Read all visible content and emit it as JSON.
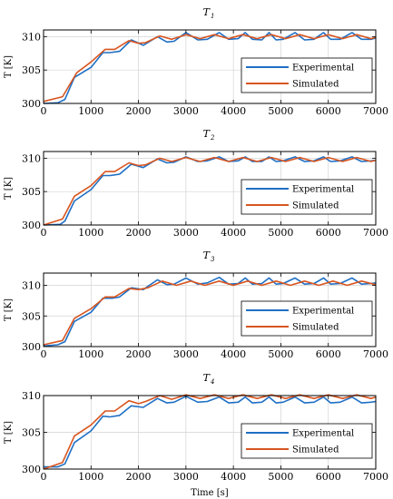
{
  "figure": {
    "xlabel": "Time [s]"
  },
  "chart_data": [
    {
      "type": "line",
      "title": "T",
      "title_sub": "1",
      "ylabel": "T [K]",
      "xlim": [
        0,
        7000
      ],
      "ylim": [
        300,
        311
      ],
      "x_ticks": [
        0,
        1000,
        2000,
        3000,
        4000,
        5000,
        6000,
        7000
      ],
      "y_ticks": [
        300,
        305,
        310
      ],
      "grid": true,
      "legend_position": "center-right",
      "series": [
        {
          "name": "Experimental",
          "color": "#1f6fc4",
          "x": [
            0,
            300,
            450,
            650,
            1000,
            1250,
            1400,
            1600,
            1850,
            2100,
            2400,
            2600,
            2750,
            3000,
            3250,
            3450,
            3700,
            3900,
            4100,
            4250,
            4400,
            4600,
            4750,
            4900,
            5050,
            5300,
            5500,
            5700,
            5900,
            6050,
            6250,
            6500,
            6700,
            6900,
            7000
          ],
          "y": [
            300.0,
            300.1,
            300.6,
            303.9,
            305.4,
            307.6,
            307.6,
            307.8,
            309.5,
            308.7,
            310.0,
            309.2,
            309.3,
            310.6,
            309.5,
            309.6,
            310.6,
            309.6,
            309.7,
            310.6,
            309.6,
            309.5,
            310.6,
            309.5,
            309.6,
            310.6,
            309.5,
            309.6,
            310.6,
            309.6,
            309.6,
            310.6,
            309.6,
            309.6,
            309.8
          ]
        },
        {
          "name": "Simulated",
          "color": "#d8551f",
          "x": [
            0,
            400,
            700,
            1000,
            1300,
            1500,
            1800,
            2000,
            2150,
            2450,
            2700,
            3000,
            3300,
            3600,
            3900,
            4200,
            4500,
            4800,
            5100,
            5400,
            5700,
            6000,
            6300,
            6600,
            6900,
            7000
          ],
          "y": [
            300.3,
            301.0,
            304.6,
            306.2,
            308.1,
            308.1,
            309.4,
            309.0,
            309.1,
            310.1,
            309.6,
            310.3,
            309.7,
            310.3,
            309.7,
            310.3,
            309.7,
            310.3,
            309.7,
            310.3,
            309.7,
            310.3,
            309.7,
            310.3,
            309.7,
            309.9
          ]
        }
      ]
    },
    {
      "type": "line",
      "title": "T",
      "title_sub": "2",
      "ylabel": "T [K]",
      "xlim": [
        0,
        7000
      ],
      "ylim": [
        300,
        311
      ],
      "x_ticks": [
        0,
        1000,
        2000,
        3000,
        4000,
        5000,
        6000,
        7000
      ],
      "y_ticks": [
        300,
        305,
        310
      ],
      "grid": true,
      "legend_position": "center-right",
      "series": [
        {
          "name": "Experimental",
          "color": "#1f6fc4",
          "x": [
            0,
            350,
            450,
            650,
            1000,
            1250,
            1400,
            1600,
            1850,
            2100,
            2400,
            2600,
            2750,
            3000,
            3250,
            3450,
            3700,
            3900,
            4100,
            4250,
            4400,
            4600,
            4750,
            4900,
            5050,
            5300,
            5500,
            5700,
            5900,
            6050,
            6250,
            6500,
            6700,
            6900,
            7000
          ],
          "y": [
            300.0,
            300.1,
            300.6,
            303.6,
            305.3,
            307.4,
            307.4,
            307.6,
            309.1,
            308.6,
            309.9,
            309.3,
            309.4,
            310.2,
            309.5,
            309.6,
            310.2,
            309.5,
            309.6,
            310.2,
            309.5,
            309.5,
            310.2,
            309.5,
            309.6,
            310.2,
            309.5,
            309.6,
            310.2,
            309.5,
            309.6,
            310.2,
            309.5,
            309.6,
            309.7
          ]
        },
        {
          "name": "Simulated",
          "color": "#d8551f",
          "x": [
            0,
            400,
            650,
            1000,
            1300,
            1500,
            1800,
            2000,
            2150,
            2450,
            2700,
            3000,
            3300,
            3600,
            3900,
            4200,
            4500,
            4800,
            5100,
            5400,
            5700,
            6000,
            6300,
            6600,
            6900,
            7000
          ],
          "y": [
            300.0,
            300.9,
            304.3,
            305.9,
            308.0,
            308.0,
            309.3,
            308.9,
            309.0,
            310.0,
            309.5,
            310.1,
            309.5,
            310.1,
            309.5,
            310.1,
            309.5,
            310.1,
            309.5,
            310.1,
            309.5,
            310.1,
            309.5,
            310.1,
            309.5,
            309.7
          ]
        }
      ]
    },
    {
      "type": "line",
      "title": "T",
      "title_sub": "3",
      "ylabel": "T [K]",
      "xlim": [
        0,
        7000
      ],
      "ylim": [
        300,
        312
      ],
      "x_ticks": [
        0,
        1000,
        2000,
        3000,
        4000,
        5000,
        6000,
        7000
      ],
      "y_ticks": [
        300,
        305,
        310
      ],
      "grid": true,
      "legend_position": "center-right",
      "series": [
        {
          "name": "Experimental",
          "color": "#1f6fc4",
          "x": [
            0,
            300,
            450,
            650,
            1000,
            1250,
            1450,
            1600,
            1850,
            2100,
            2400,
            2600,
            2750,
            3000,
            3250,
            3450,
            3700,
            3900,
            4100,
            4250,
            4400,
            4600,
            4750,
            4900,
            5050,
            5300,
            5500,
            5700,
            5900,
            6050,
            6250,
            6500,
            6700,
            6900,
            7000
          ],
          "y": [
            300.1,
            300.3,
            300.8,
            304.1,
            305.6,
            307.9,
            307.9,
            308.1,
            309.6,
            309.3,
            310.9,
            310.1,
            310.2,
            311.2,
            310.2,
            310.4,
            311.3,
            310.2,
            310.3,
            311.2,
            310.2,
            310.3,
            311.2,
            310.2,
            310.3,
            311.2,
            310.2,
            310.3,
            311.2,
            310.2,
            310.3,
            311.2,
            310.2,
            310.3,
            310.4
          ]
        },
        {
          "name": "Simulated",
          "color": "#d8551f",
          "x": [
            0,
            400,
            650,
            1000,
            1300,
            1500,
            1800,
            2000,
            2200,
            2500,
            2800,
            3100,
            3400,
            3700,
            4000,
            4300,
            4600,
            4900,
            5200,
            5500,
            5800,
            6100,
            6400,
            6700,
            7000
          ],
          "y": [
            300.3,
            301.0,
            304.6,
            306.2,
            308.1,
            308.1,
            309.5,
            309.3,
            309.6,
            310.7,
            310.0,
            310.7,
            310.0,
            310.7,
            310.0,
            310.7,
            310.0,
            310.7,
            310.0,
            310.7,
            310.0,
            310.7,
            310.0,
            310.7,
            310.1
          ]
        }
      ]
    },
    {
      "type": "line",
      "title": "T",
      "title_sub": "4",
      "ylabel": "T [K]",
      "xlabel": "Time [s]",
      "xlim": [
        0,
        7000
      ],
      "ylim": [
        300,
        310
      ],
      "x_ticks": [
        0,
        1000,
        2000,
        3000,
        4000,
        5000,
        6000,
        7000
      ],
      "y_ticks": [
        300,
        305,
        310
      ],
      "grid": true,
      "legend_position": "center-right",
      "series": [
        {
          "name": "Experimental",
          "color": "#1f6fc4",
          "x": [
            0,
            300,
            450,
            650,
            1000,
            1250,
            1400,
            1600,
            1850,
            2100,
            2400,
            2600,
            2750,
            3000,
            3250,
            3450,
            3700,
            3900,
            4100,
            4250,
            4400,
            4600,
            4750,
            4900,
            5050,
            5300,
            5500,
            5700,
            5900,
            6050,
            6250,
            6500,
            6700,
            6900,
            7000
          ],
          "y": [
            300.3,
            300.3,
            300.7,
            303.6,
            305.2,
            307.2,
            307.1,
            307.3,
            308.6,
            308.4,
            309.6,
            309.0,
            309.1,
            309.9,
            309.1,
            309.2,
            309.8,
            309.0,
            309.1,
            309.8,
            309.0,
            309.1,
            309.8,
            309.0,
            309.1,
            309.8,
            309.0,
            309.1,
            309.8,
            309.0,
            309.1,
            309.8,
            309.0,
            309.1,
            309.2
          ]
        },
        {
          "name": "Simulated",
          "color": "#d8551f",
          "x": [
            0,
            400,
            650,
            1000,
            1300,
            1500,
            1800,
            2000,
            2150,
            2450,
            2700,
            3000,
            3300,
            3600,
            3900,
            4200,
            4500,
            4800,
            5100,
            5400,
            5700,
            6000,
            6300,
            6600,
            6900,
            7000
          ],
          "y": [
            300.0,
            300.9,
            304.5,
            306.0,
            307.9,
            307.9,
            309.3,
            308.9,
            309.2,
            310.0,
            309.5,
            310.1,
            309.6,
            310.1,
            309.6,
            310.1,
            309.6,
            310.1,
            309.6,
            310.1,
            309.6,
            310.1,
            309.6,
            310.1,
            309.6,
            309.8
          ]
        }
      ]
    }
  ]
}
